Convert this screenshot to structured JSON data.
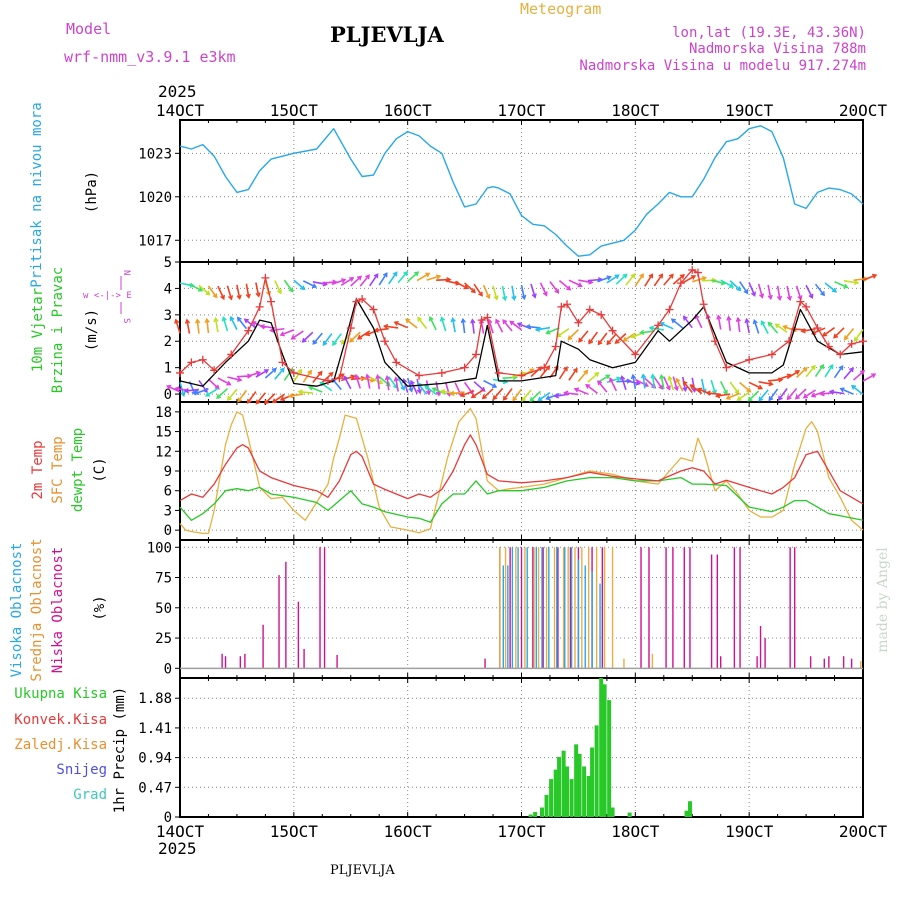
{
  "header": {
    "model_label": "Model",
    "model_name": "wrf-nmm_v3.9.1  e3km",
    "station": "PLJEVLJA",
    "product": "Meteogram",
    "lonlat": "lon,lat (19.3E, 43.36N)",
    "altitude": "Nadmorska Visina 788m",
    "model_altitude": "Nadmorska Visina u modelu 917.274m",
    "year": "2025",
    "footer_station": "PLJEVLJA",
    "credit": "made by Angel"
  },
  "colors": {
    "purple": "#cc44cc",
    "gold": "#e8b040",
    "cyan": "#28a8e8",
    "green": "#28c828",
    "red": "#e83a3a",
    "orange": "#e89030",
    "blue": "#5050e0",
    "teal": "#40c8b8",
    "magenta": "#d01090",
    "black": "#000000",
    "grid": "#888888"
  },
  "time_axis": {
    "labels": [
      "14OCT",
      "15OCT",
      "16OCT",
      "17OCT",
      "18OCT",
      "19OCT",
      "20OCT"
    ],
    "days": [
      14,
      15,
      16,
      17,
      18,
      19,
      20
    ]
  },
  "panels": {
    "pressure": {
      "label": "Pritisak na nivou mora",
      "unit": "(hPa)",
      "ticks": [
        "1023",
        "1020",
        "1017"
      ]
    },
    "wind": {
      "label_line1": "10m Vjetar",
      "label_line2": "Brzina i Pravac",
      "unit": "(m/s)",
      "legend_top": "w <-|-> E",
      "legend_n": "N",
      "legend_s": "S",
      "ticks": [
        "5",
        "4",
        "3",
        "2",
        "1",
        "0"
      ]
    },
    "temperature": {
      "label_2m": "2m Temp",
      "label_sfc": "SFC Temp",
      "label_dew": "dewpt Temp",
      "unit": "(C)",
      "ticks": [
        "18",
        "15",
        "12",
        "9",
        "6",
        "3",
        "0"
      ]
    },
    "cloud": {
      "label_high": "Visoka Oblacnost",
      "label_mid": "Srednja Oblacnost",
      "label_low": "Niska Oblacnost",
      "unit": "(%)",
      "ticks": [
        "100",
        "75",
        "50",
        "25",
        "0"
      ]
    },
    "precip": {
      "legend": [
        "Ukupna Kisa",
        "Konvek.Kisa",
        "Zaledj.Kisa",
        "Snijeg",
        "Grad"
      ],
      "label": "1hr Precip (mm)",
      "ticks": [
        "1.88",
        "1.41",
        "0.94",
        "0.47",
        "0"
      ]
    }
  },
  "chart_data": [
    {
      "type": "line",
      "title": "Pritisak na nivou mora",
      "ylabel": "hPa",
      "ylim": [
        1015.5,
        1025.3
      ],
      "series": [
        {
          "name": "MSLP",
          "x": [
            14.0,
            14.1,
            14.2,
            14.3,
            14.4,
            14.5,
            14.6,
            14.7,
            14.8,
            15.0,
            15.2,
            15.35,
            15.5,
            15.6,
            15.7,
            15.8,
            15.9,
            16.0,
            16.1,
            16.2,
            16.3,
            16.4,
            16.5,
            16.6,
            16.7,
            16.75,
            16.8,
            16.9,
            17.0,
            17.1,
            17.2,
            17.3,
            17.4,
            17.5,
            17.6,
            17.7,
            17.75,
            17.8,
            17.9,
            18.0,
            18.1,
            18.2,
            18.3,
            18.4,
            18.5,
            18.6,
            18.7,
            18.8,
            18.9,
            19.0,
            19.1,
            19.2,
            19.3,
            19.4,
            19.5,
            19.6,
            19.7,
            19.8,
            19.9,
            20.0
          ],
          "values": [
            1023.5,
            1023.3,
            1023.6,
            1022.8,
            1021.4,
            1020.3,
            1020.5,
            1021.8,
            1022.6,
            1023.0,
            1023.3,
            1024.7,
            1022.6,
            1021.4,
            1021.5,
            1023.0,
            1024.0,
            1024.5,
            1024.2,
            1023.5,
            1023.0,
            1021.0,
            1019.3,
            1019.5,
            1020.6,
            1020.7,
            1020.6,
            1020.2,
            1018.7,
            1018.1,
            1018.0,
            1017.4,
            1016.6,
            1015.9,
            1016.0,
            1016.6,
            1016.7,
            1016.8,
            1017.0,
            1017.7,
            1018.8,
            1019.5,
            1020.3,
            1020.0,
            1020.0,
            1021.2,
            1022.7,
            1023.8,
            1024.0,
            1024.7,
            1024.9,
            1024.5,
            1022.7,
            1019.5,
            1019.2,
            1020.3,
            1020.6,
            1020.5,
            1020.2,
            1019.5
          ]
        }
      ]
    },
    {
      "type": "line",
      "title": "10m Vjetar Brzina i Pravac",
      "ylabel": "m/s",
      "ylim": [
        -0.3,
        5.0
      ],
      "series": [
        {
          "name": "Wind speed",
          "x": [
            14.0,
            14.2,
            14.4,
            14.6,
            14.7,
            14.8,
            14.9,
            15.0,
            15.2,
            15.35,
            15.45,
            15.55,
            15.7,
            15.8,
            16.0,
            16.3,
            16.6,
            16.7,
            16.8,
            17.0,
            17.3,
            17.35,
            17.5,
            17.6,
            17.8,
            18.0,
            18.2,
            18.3,
            18.5,
            18.6,
            18.8,
            19.0,
            19.2,
            19.3,
            19.45,
            19.6,
            19.8,
            20.0
          ],
          "values": [
            0.5,
            0.3,
            1.2,
            2.0,
            2.8,
            2.7,
            1.5,
            0.4,
            0.3,
            0.5,
            2.0,
            3.6,
            2.5,
            1.2,
            0.3,
            0.4,
            0.6,
            2.6,
            0.5,
            0.5,
            0.7,
            2.0,
            1.7,
            1.3,
            1.0,
            1.2,
            2.4,
            2.0,
            2.8,
            3.3,
            1.2,
            0.8,
            0.8,
            1.1,
            3.2,
            2.0,
            1.5,
            1.6
          ]
        },
        {
          "name": "Wind gust",
          "x": [
            14.0,
            14.1,
            14.2,
            14.3,
            14.45,
            14.6,
            14.7,
            14.75,
            14.8,
            14.9,
            15.0,
            15.3,
            15.4,
            15.5,
            15.55,
            15.6,
            15.7,
            15.8,
            15.9,
            16.1,
            16.3,
            16.5,
            16.6,
            16.65,
            16.7,
            16.8,
            17.0,
            17.2,
            17.3,
            17.35,
            17.4,
            17.5,
            17.6,
            17.7,
            17.8,
            18.0,
            18.2,
            18.3,
            18.4,
            18.5,
            18.55,
            18.6,
            18.7,
            18.8,
            19.0,
            19.2,
            19.35,
            19.45,
            19.5,
            19.6,
            19.7,
            19.8,
            19.9,
            20.0
          ],
          "values": [
            0.8,
            1.2,
            1.3,
            0.9,
            1.5,
            2.4,
            3.3,
            4.4,
            3.5,
            1.2,
            0.8,
            0.5,
            0.6,
            2.5,
            3.5,
            3.6,
            3.2,
            2.0,
            1.2,
            0.7,
            0.8,
            1.0,
            1.5,
            2.8,
            2.9,
            0.8,
            0.7,
            1.0,
            1.8,
            3.3,
            3.4,
            2.7,
            3.2,
            3.0,
            2.4,
            1.5,
            2.6,
            3.2,
            4.2,
            4.7,
            4.6,
            3.4,
            2.0,
            1.0,
            1.3,
            1.5,
            2.0,
            3.5,
            3.3,
            2.5,
            1.8,
            1.5,
            1.9,
            2.0
          ]
        }
      ]
    },
    {
      "type": "line",
      "title": "Temperature",
      "ylabel": "C",
      "ylim": [
        -1.5,
        19.5
      ],
      "series": [
        {
          "name": "2m Temp",
          "x": [
            14.0,
            14.1,
            14.2,
            14.3,
            14.4,
            14.5,
            14.55,
            14.6,
            14.7,
            14.8,
            15.0,
            15.2,
            15.3,
            15.4,
            15.5,
            15.55,
            15.6,
            15.7,
            15.8,
            16.0,
            16.1,
            16.2,
            16.3,
            16.4,
            16.5,
            16.55,
            16.6,
            16.7,
            16.8,
            17.0,
            17.2,
            17.4,
            17.6,
            17.8,
            18.0,
            18.2,
            18.4,
            18.5,
            18.6,
            18.7,
            18.8,
            19.0,
            19.2,
            19.3,
            19.4,
            19.5,
            19.6,
            19.8,
            20.0
          ],
          "values": [
            4.5,
            5.5,
            5.0,
            7.0,
            10.0,
            12.5,
            13.0,
            12.5,
            9.0,
            8.0,
            6.8,
            6.0,
            5.0,
            7.5,
            11.5,
            12.0,
            11.2,
            7.0,
            6.2,
            4.8,
            5.5,
            5.0,
            6.2,
            9.0,
            13.0,
            14.5,
            13.0,
            8.5,
            7.5,
            7.2,
            7.5,
            8.0,
            8.8,
            8.2,
            7.8,
            7.5,
            9.0,
            9.5,
            9.0,
            7.0,
            7.6,
            6.5,
            5.5,
            6.5,
            8.0,
            11.5,
            12.0,
            6.0,
            4.0
          ]
        },
        {
          "name": "SFC Temp",
          "x": [
            14.0,
            14.05,
            14.1,
            14.2,
            14.25,
            14.3,
            14.4,
            14.45,
            14.5,
            14.55,
            14.6,
            14.7,
            14.8,
            14.9,
            15.0,
            15.1,
            15.2,
            15.3,
            15.35,
            15.4,
            15.45,
            15.55,
            15.65,
            15.75,
            15.85,
            16.0,
            16.1,
            16.2,
            16.35,
            16.45,
            16.55,
            16.6,
            16.7,
            16.8,
            16.9,
            17.0,
            17.2,
            17.4,
            17.6,
            17.8,
            18.0,
            18.2,
            18.3,
            18.4,
            18.5,
            18.55,
            18.6,
            18.7,
            18.8,
            18.9,
            19.0,
            19.1,
            19.2,
            19.3,
            19.4,
            19.5,
            19.55,
            19.6,
            19.7,
            19.8,
            19.9,
            20.0
          ],
          "values": [
            1.0,
            0.0,
            -0.2,
            -0.5,
            -0.5,
            3.0,
            13.0,
            16.0,
            18.0,
            17.5,
            14.0,
            6.5,
            4.8,
            5.0,
            3.0,
            1.5,
            4.2,
            7.0,
            11.0,
            14.0,
            17.5,
            17.0,
            11.0,
            3.5,
            0.5,
            0.0,
            -0.4,
            0.2,
            11.0,
            16.5,
            18.5,
            17.0,
            7.5,
            6.0,
            6.3,
            6.5,
            7.0,
            8.0,
            9.0,
            8.5,
            7.5,
            7.0,
            9.0,
            11.0,
            10.5,
            14.0,
            12.0,
            6.0,
            7.5,
            5.5,
            3.0,
            2.0,
            2.0,
            3.0,
            10.0,
            15.5,
            16.5,
            15.0,
            8.0,
            5.0,
            1.5,
            0.0
          ]
        },
        {
          "name": "dewpt Temp",
          "x": [
            14.0,
            14.1,
            14.2,
            14.3,
            14.4,
            14.5,
            14.6,
            14.7,
            14.8,
            15.0,
            15.2,
            15.3,
            15.4,
            15.5,
            15.6,
            15.7,
            15.8,
            16.0,
            16.1,
            16.2,
            16.3,
            16.4,
            16.5,
            16.6,
            16.7,
            16.8,
            17.0,
            17.2,
            17.4,
            17.6,
            17.8,
            18.0,
            18.2,
            18.4,
            18.5,
            18.6,
            18.8,
            19.0,
            19.2,
            19.3,
            19.4,
            19.5,
            19.6,
            19.7,
            19.8,
            20.0
          ],
          "values": [
            3.5,
            1.5,
            2.5,
            4.0,
            6.0,
            6.3,
            6.0,
            6.5,
            5.5,
            5.0,
            4.2,
            3.0,
            4.5,
            6.0,
            4.0,
            3.5,
            2.8,
            2.0,
            1.8,
            1.2,
            4.0,
            5.5,
            5.5,
            7.5,
            5.5,
            6.0,
            6.0,
            6.5,
            7.5,
            8.0,
            8.0,
            7.5,
            7.5,
            8.0,
            7.0,
            7.0,
            6.8,
            3.5,
            2.8,
            3.5,
            4.5,
            4.5,
            3.5,
            2.5,
            2.2,
            1.5
          ]
        }
      ]
    },
    {
      "type": "bar",
      "title": "Cloud cover",
      "ylabel": "%",
      "ylim": [
        0,
        100
      ],
      "series": [
        {
          "name": "Niska Oblacnost",
          "x": [
            14.37,
            14.4,
            14.53,
            14.57,
            14.73,
            14.87,
            14.93,
            15.04,
            15.09,
            15.23,
            15.27,
            15.38,
            16.68,
            16.81,
            16.9,
            17.0,
            17.1,
            17.19,
            17.32,
            17.43,
            17.5,
            17.62,
            17.71,
            18.05,
            18.12,
            18.27,
            18.33,
            18.43,
            18.48,
            18.67,
            18.72,
            18.75,
            18.87,
            18.92,
            19.07,
            19.1,
            19.14,
            19.36,
            19.4,
            19.54,
            19.66,
            19.7,
            19.83,
            19.9
          ],
          "values": [
            12,
            10,
            10,
            12,
            36,
            77,
            88,
            55,
            16,
            100,
            100,
            11,
            8,
            100,
            100,
            100,
            100,
            100,
            100,
            100,
            100,
            100,
            100,
            100,
            100,
            100,
            100,
            100,
            100,
            94,
            94,
            10,
            100,
            100,
            10,
            35,
            25,
            100,
            100,
            10,
            8,
            10,
            10,
            8
          ]
        },
        {
          "name": "Srednja Oblacnost",
          "x": [
            16.81,
            16.86,
            16.95,
            17.03,
            17.11,
            17.15,
            17.22,
            17.29,
            17.37,
            17.41,
            17.47,
            17.53,
            17.59,
            17.66,
            17.73,
            17.8,
            17.9,
            18.15,
            19.98
          ],
          "values": [
            100,
            100,
            100,
            100,
            100,
            100,
            100,
            100,
            100,
            100,
            100,
            100,
            100,
            100,
            100,
            100,
            8,
            12,
            6
          ]
        },
        {
          "name": "Visoka Oblacnost",
          "x": [
            16.84,
            16.88,
            16.92,
            16.97,
            17.05,
            17.13,
            17.18,
            17.24,
            17.31,
            17.38,
            17.44,
            17.5,
            17.56,
            17.62,
            17.69
          ],
          "values": [
            85,
            85,
            100,
            100,
            100,
            100,
            100,
            100,
            100,
            100,
            100,
            90,
            85,
            80,
            70
          ]
        }
      ]
    },
    {
      "type": "bar",
      "title": "1hr Precip",
      "ylabel": "mm",
      "ylim": [
        0,
        2.2
      ],
      "series": [
        {
          "name": "Ukupna Kisa",
          "x": [
            17.08,
            17.12,
            17.18,
            17.22,
            17.26,
            17.3,
            17.33,
            17.37,
            17.4,
            17.44,
            17.48,
            17.51,
            17.55,
            17.59,
            17.62,
            17.66,
            17.7,
            17.73,
            17.77,
            17.8,
            17.95,
            18.45,
            18.48
          ],
          "values": [
            0.04,
            0.08,
            0.15,
            0.35,
            0.6,
            0.75,
            0.95,
            1.05,
            0.8,
            0.6,
            1.15,
            1.0,
            0.8,
            0.65,
            1.1,
            1.45,
            2.2,
            2.1,
            1.85,
            0.15,
            0.07,
            0.1,
            0.25
          ]
        }
      ]
    }
  ]
}
